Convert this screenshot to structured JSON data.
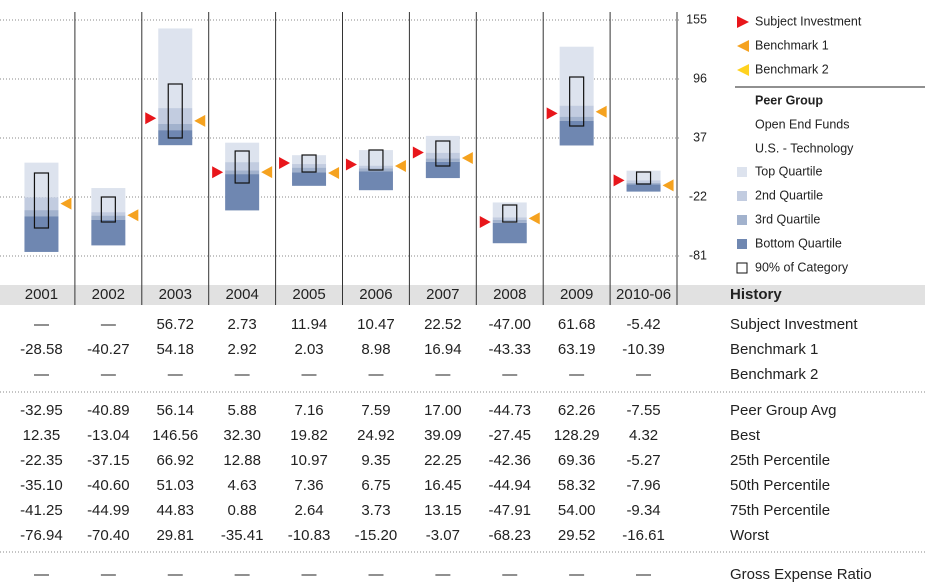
{
  "chart_data": {
    "type": "quartile",
    "categories": [
      "2001",
      "2002",
      "2003",
      "2004",
      "2005",
      "2006",
      "2007",
      "2008",
      "2009",
      "2010-06"
    ],
    "ylim": [
      -105,
      165
    ],
    "yticks": [
      155,
      96,
      37,
      -22,
      -81
    ],
    "grid": true,
    "series": [
      {
        "name": "Subject Investment",
        "color": "#e8161b",
        "values": [
          null,
          null,
          56.72,
          2.73,
          11.94,
          10.47,
          22.52,
          -47.0,
          61.68,
          -5.42
        ],
        "value_labels": [
          "—",
          "—",
          "56.72",
          "2.73",
          "11.94",
          "10.47",
          "22.52",
          "-47.00",
          "61.68",
          "-5.42"
        ]
      },
      {
        "name": "Benchmark 1",
        "color": "#f5a21f",
        "values": [
          -28.58,
          -40.27,
          54.18,
          2.92,
          2.03,
          8.98,
          16.94,
          -43.33,
          63.19,
          -10.39
        ],
        "value_labels": [
          "-28.58",
          "-40.27",
          "54.18",
          "2.92",
          "2.03",
          "8.98",
          "16.94",
          "-43.33",
          "63.19",
          "-10.39"
        ]
      },
      {
        "name": "Benchmark 2",
        "color": "#ffd21f",
        "values": [
          null,
          null,
          null,
          null,
          null,
          null,
          null,
          null,
          null,
          null
        ],
        "value_labels": [
          "—",
          "—",
          "—",
          "—",
          "—",
          "—",
          "—",
          "—",
          "—",
          "—"
        ]
      }
    ],
    "peer_group": {
      "title": "Peer Group",
      "lines": [
        "Open End Funds",
        "U.S. - Technology"
      ]
    },
    "quartiles": [
      {
        "name": "Top Quartile",
        "color": "#dde3ee"
      },
      {
        "name": "2nd Quartile",
        "color": "#c2cce0"
      },
      {
        "name": "3rd Quartile",
        "color": "#a2b2cd"
      },
      {
        "name": "Bottom Quartile",
        "color": "#6f87b1"
      }
    ],
    "range_90": {
      "name": "90% of Category",
      "high": [
        2,
        -22,
        91,
        24,
        20,
        25,
        34,
        -30,
        98,
        3
      ],
      "low": [
        -53,
        -47,
        37,
        -8,
        3,
        5,
        9,
        -47,
        49,
        -9
      ]
    },
    "history_title": "History",
    "stats": [
      {
        "name": "Peer Group Avg",
        "values": [
          -32.95,
          -40.89,
          56.14,
          5.88,
          7.16,
          7.59,
          17.0,
          -44.73,
          62.26,
          -7.55
        ],
        "value_labels": [
          "-32.95",
          "-40.89",
          "56.14",
          "5.88",
          "7.16",
          "7.59",
          "17.00",
          "-44.73",
          "62.26",
          "-7.55"
        ]
      },
      {
        "name": "Best",
        "values": [
          12.35,
          -13.04,
          146.56,
          32.3,
          19.82,
          24.92,
          39.09,
          -27.45,
          128.29,
          4.32
        ],
        "value_labels": [
          "12.35",
          "-13.04",
          "146.56",
          "32.30",
          "19.82",
          "24.92",
          "39.09",
          "-27.45",
          "128.29",
          "4.32"
        ]
      },
      {
        "name": "25th Percentile",
        "values": [
          -22.35,
          -37.15,
          66.92,
          12.88,
          10.97,
          9.35,
          22.25,
          -42.36,
          69.36,
          -5.27
        ],
        "value_labels": [
          "-22.35",
          "-37.15",
          "66.92",
          "12.88",
          "10.97",
          "9.35",
          "22.25",
          "-42.36",
          "69.36",
          "-5.27"
        ]
      },
      {
        "name": "50th Percentile",
        "values": [
          -35.1,
          -40.6,
          51.03,
          4.63,
          7.36,
          6.75,
          16.45,
          -44.94,
          58.32,
          -7.96
        ],
        "value_labels": [
          "-35.10",
          "-40.60",
          "51.03",
          "4.63",
          "7.36",
          "6.75",
          "16.45",
          "-44.94",
          "58.32",
          "-7.96"
        ]
      },
      {
        "name": "75th Percentile",
        "values": [
          -41.25,
          -44.99,
          44.83,
          0.88,
          2.64,
          3.73,
          13.15,
          -47.91,
          54.0,
          -9.34
        ],
        "value_labels": [
          "-41.25",
          "-44.99",
          "44.83",
          "0.88",
          "2.64",
          "3.73",
          "13.15",
          "-47.91",
          "54.00",
          "-9.34"
        ]
      },
      {
        "name": "Worst",
        "values": [
          -76.94,
          -70.4,
          29.81,
          -35.41,
          -10.83,
          -15.2,
          -3.07,
          -68.23,
          29.52,
          -16.61
        ],
        "value_labels": [
          "-76.94",
          "-70.40",
          "29.81",
          "-35.41",
          "-10.83",
          "-15.20",
          "-3.07",
          "-68.23",
          "29.52",
          "-16.61"
        ]
      }
    ],
    "expense": {
      "name": "Gross Expense Ratio",
      "value_labels": [
        "—",
        "—",
        "—",
        "—",
        "—",
        "—",
        "—",
        "—",
        "—",
        "—"
      ]
    }
  }
}
